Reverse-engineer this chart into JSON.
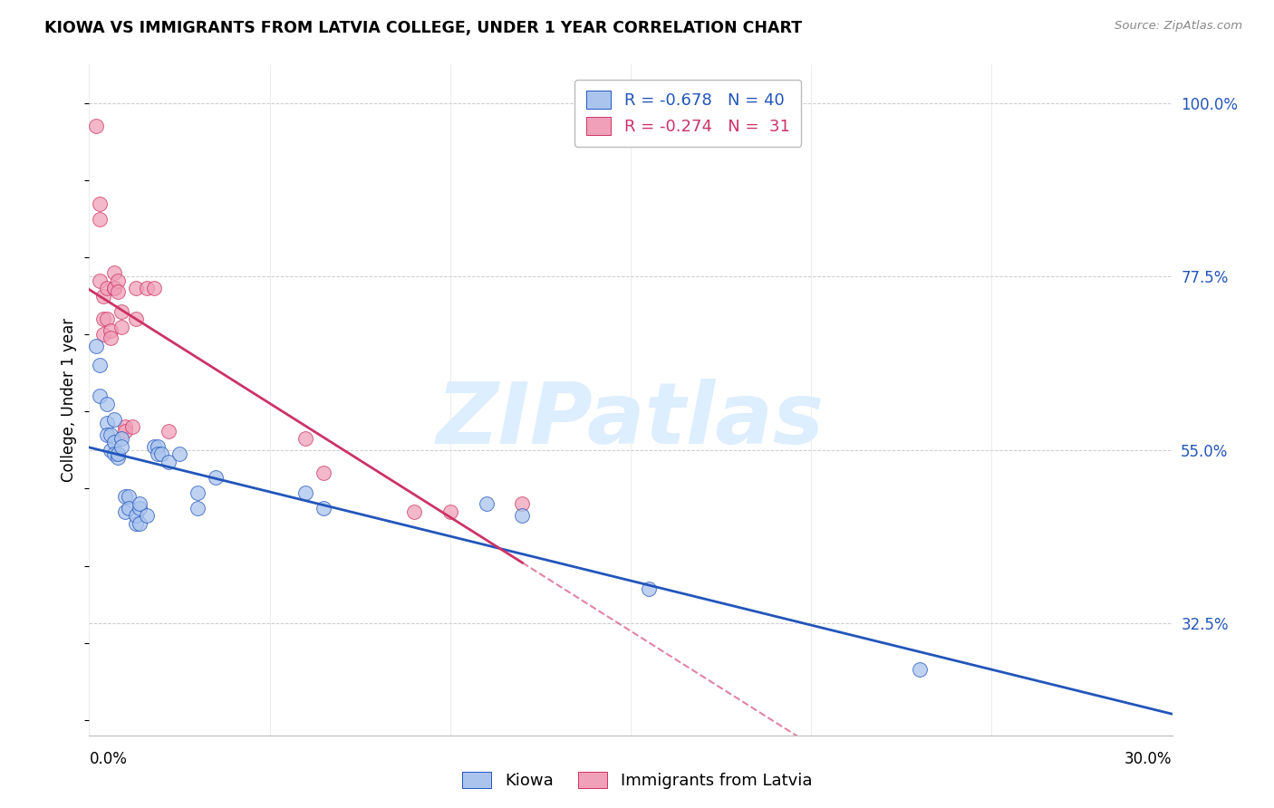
{
  "title": "KIOWA VS IMMIGRANTS FROM LATVIA COLLEGE, UNDER 1 YEAR CORRELATION CHART",
  "source": "Source: ZipAtlas.com",
  "ylabel": "College, Under 1 year",
  "y_tick_labels": [
    "100.0%",
    "77.5%",
    "55.0%",
    "32.5%"
  ],
  "y_tick_values": [
    1.0,
    0.775,
    0.55,
    0.325
  ],
  "x_min": 0.0,
  "x_max": 0.3,
  "y_min": 0.18,
  "y_max": 1.05,
  "legend_entry_blue": "R = -0.678   N = 40",
  "legend_entry_pink": "R = -0.274   N =  31",
  "kiowa_scatter": [
    [
      0.002,
      0.685
    ],
    [
      0.003,
      0.66
    ],
    [
      0.003,
      0.62
    ],
    [
      0.005,
      0.61
    ],
    [
      0.005,
      0.585
    ],
    [
      0.005,
      0.57
    ],
    [
      0.006,
      0.57
    ],
    [
      0.006,
      0.55
    ],
    [
      0.007,
      0.59
    ],
    [
      0.007,
      0.56
    ],
    [
      0.007,
      0.545
    ],
    [
      0.008,
      0.54
    ],
    [
      0.008,
      0.545
    ],
    [
      0.009,
      0.565
    ],
    [
      0.009,
      0.555
    ],
    [
      0.01,
      0.49
    ],
    [
      0.01,
      0.47
    ],
    [
      0.011,
      0.49
    ],
    [
      0.011,
      0.475
    ],
    [
      0.013,
      0.455
    ],
    [
      0.013,
      0.465
    ],
    [
      0.014,
      0.455
    ],
    [
      0.014,
      0.475
    ],
    [
      0.014,
      0.48
    ],
    [
      0.016,
      0.465
    ],
    [
      0.018,
      0.555
    ],
    [
      0.019,
      0.555
    ],
    [
      0.019,
      0.545
    ],
    [
      0.02,
      0.545
    ],
    [
      0.022,
      0.535
    ],
    [
      0.025,
      0.545
    ],
    [
      0.03,
      0.495
    ],
    [
      0.03,
      0.475
    ],
    [
      0.035,
      0.515
    ],
    [
      0.06,
      0.495
    ],
    [
      0.065,
      0.475
    ],
    [
      0.11,
      0.48
    ],
    [
      0.12,
      0.465
    ],
    [
      0.155,
      0.37
    ],
    [
      0.23,
      0.265
    ]
  ],
  "latvia_scatter": [
    [
      0.002,
      0.97
    ],
    [
      0.003,
      0.87
    ],
    [
      0.003,
      0.85
    ],
    [
      0.003,
      0.77
    ],
    [
      0.004,
      0.75
    ],
    [
      0.004,
      0.72
    ],
    [
      0.004,
      0.7
    ],
    [
      0.005,
      0.76
    ],
    [
      0.005,
      0.72
    ],
    [
      0.006,
      0.705
    ],
    [
      0.006,
      0.695
    ],
    [
      0.007,
      0.78
    ],
    [
      0.007,
      0.76
    ],
    [
      0.007,
      0.76
    ],
    [
      0.008,
      0.77
    ],
    [
      0.008,
      0.755
    ],
    [
      0.009,
      0.73
    ],
    [
      0.009,
      0.71
    ],
    [
      0.01,
      0.58
    ],
    [
      0.01,
      0.575
    ],
    [
      0.012,
      0.58
    ],
    [
      0.013,
      0.76
    ],
    [
      0.013,
      0.72
    ],
    [
      0.016,
      0.76
    ],
    [
      0.018,
      0.76
    ],
    [
      0.022,
      0.575
    ],
    [
      0.06,
      0.565
    ],
    [
      0.065,
      0.52
    ],
    [
      0.09,
      0.47
    ],
    [
      0.1,
      0.47
    ],
    [
      0.12,
      0.48
    ]
  ],
  "kiowa_line_color": "#2255bb",
  "latvia_line_color": "#cc3366",
  "scatter_blue": "#aac4ee",
  "scatter_pink": "#f0a0b8",
  "watermark_text": "ZIPatlas",
  "watermark_color": "#ddeeff",
  "bg_color": "#ffffff",
  "grid_color": "#cccccc"
}
